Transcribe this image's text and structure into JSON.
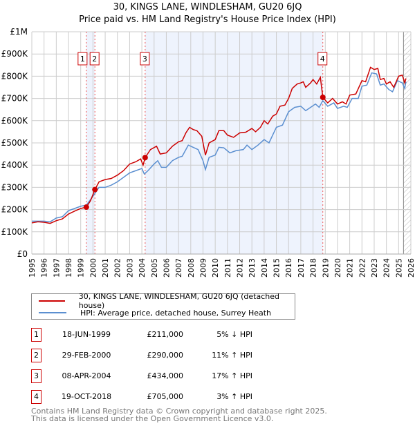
{
  "chart_data": {
    "type": "line",
    "title": "30, KINGS LANE, WINDLESHAM, GU20 6JQ",
    "subtitle": "Price paid vs. HM Land Registry's House Price Index (HPI)",
    "xlim": [
      1995,
      2026
    ],
    "ylim": [
      0,
      1000000
    ],
    "yticks": [
      {
        "v": 0,
        "l": "£0"
      },
      {
        "v": 100000,
        "l": "£100K"
      },
      {
        "v": 200000,
        "l": "£200K"
      },
      {
        "v": 300000,
        "l": "£300K"
      },
      {
        "v": 400000,
        "l": "£400K"
      },
      {
        "v": 500000,
        "l": "£500K"
      },
      {
        "v": 600000,
        "l": "£600K"
      },
      {
        "v": 700000,
        "l": "£700K"
      },
      {
        "v": 800000,
        "l": "£800K"
      },
      {
        "v": 900000,
        "l": "£900K"
      },
      {
        "v": 1000000,
        "l": "£1M"
      }
    ],
    "xticks": [
      "1995",
      "1996",
      "1997",
      "1998",
      "1999",
      "2000",
      "2001",
      "2002",
      "2003",
      "2004",
      "2005",
      "2006",
      "2007",
      "2008",
      "2009",
      "2010",
      "2011",
      "2012",
      "2013",
      "2014",
      "2015",
      "2016",
      "2017",
      "2018",
      "2019",
      "2020",
      "2021",
      "2022",
      "2023",
      "2024",
      "2025",
      "2026"
    ],
    "grid": true,
    "shaded_periods": [
      [
        1999.46,
        2000.16
      ],
      [
        2004.27,
        2018.8
      ]
    ],
    "forecast_hatch_from": 2025.4,
    "colors": {
      "price": "#cc0000",
      "hpi": "#5b8fd0",
      "shade": "#eef3fd"
    },
    "series": [
      {
        "name": "30, KINGS LANE, WINDLESHAM, GU20 6JQ (detached house)",
        "points": [
          [
            1995,
            140
          ],
          [
            1995.5,
            145
          ],
          [
            1996,
            143
          ],
          [
            1996.5,
            138
          ],
          [
            1997,
            150
          ],
          [
            1997.5,
            158
          ],
          [
            1998,
            180
          ],
          [
            1998.5,
            193
          ],
          [
            1999,
            205
          ],
          [
            1999.46,
            211
          ],
          [
            1999.8,
            240
          ],
          [
            2000.16,
            290
          ],
          [
            2000.5,
            325
          ],
          [
            2001,
            335
          ],
          [
            2001.5,
            340
          ],
          [
            2002,
            355
          ],
          [
            2002.5,
            375
          ],
          [
            2003,
            405
          ],
          [
            2003.5,
            415
          ],
          [
            2003.9,
            428
          ],
          [
            2004.1,
            400
          ],
          [
            2004.27,
            434
          ],
          [
            2004.7,
            470
          ],
          [
            2005.2,
            485
          ],
          [
            2005.5,
            450
          ],
          [
            2006,
            455
          ],
          [
            2006.5,
            485
          ],
          [
            2007,
            505
          ],
          [
            2007.3,
            510
          ],
          [
            2007.6,
            545
          ],
          [
            2007.9,
            570
          ],
          [
            2008.2,
            560
          ],
          [
            2008.5,
            555
          ],
          [
            2008.9,
            530
          ],
          [
            2009.2,
            445
          ],
          [
            2009.5,
            500
          ],
          [
            2010,
            515
          ],
          [
            2010.3,
            555
          ],
          [
            2010.7,
            555
          ],
          [
            2011,
            535
          ],
          [
            2011.5,
            525
          ],
          [
            2012,
            545
          ],
          [
            2012.5,
            548
          ],
          [
            2013,
            565
          ],
          [
            2013.3,
            550
          ],
          [
            2013.7,
            570
          ],
          [
            2014,
            600
          ],
          [
            2014.3,
            585
          ],
          [
            2014.7,
            620
          ],
          [
            2015,
            630
          ],
          [
            2015.3,
            665
          ],
          [
            2015.7,
            670
          ],
          [
            2016,
            700
          ],
          [
            2016.3,
            745
          ],
          [
            2016.7,
            765
          ],
          [
            2017,
            770
          ],
          [
            2017.2,
            775
          ],
          [
            2017.4,
            750
          ],
          [
            2017.8,
            770
          ],
          [
            2018,
            785
          ],
          [
            2018.3,
            765
          ],
          [
            2018.6,
            795
          ],
          [
            2018.8,
            705
          ],
          [
            2019.2,
            680
          ],
          [
            2019.6,
            700
          ],
          [
            2020,
            675
          ],
          [
            2020.4,
            685
          ],
          [
            2020.7,
            675
          ],
          [
            2021,
            715
          ],
          [
            2021.5,
            720
          ],
          [
            2022,
            780
          ],
          [
            2022.3,
            775
          ],
          [
            2022.7,
            840
          ],
          [
            2023,
            830
          ],
          [
            2023.3,
            835
          ],
          [
            2023.5,
            785
          ],
          [
            2023.8,
            790
          ],
          [
            2024,
            765
          ],
          [
            2024.3,
            775
          ],
          [
            2024.6,
            750
          ],
          [
            2025,
            800
          ],
          [
            2025.3,
            805
          ],
          [
            2025.5,
            770
          ],
          [
            2025.6,
            790
          ]
        ]
      },
      {
        "name": "HPI: Average price, detached house, Surrey Heath",
        "points": [
          [
            1995,
            148
          ],
          [
            1996,
            148
          ],
          [
            1996.5,
            145
          ],
          [
            1997,
            162
          ],
          [
            1997.5,
            168
          ],
          [
            1998,
            195
          ],
          [
            1998.5,
            205
          ],
          [
            1999,
            215
          ],
          [
            1999.46,
            220
          ],
          [
            2000,
            260
          ],
          [
            2000.5,
            300
          ],
          [
            2001,
            300
          ],
          [
            2001.5,
            310
          ],
          [
            2002,
            325
          ],
          [
            2002.5,
            345
          ],
          [
            2003,
            365
          ],
          [
            2003.5,
            375
          ],
          [
            2004,
            385
          ],
          [
            2004.2,
            360
          ],
          [
            2004.5,
            375
          ],
          [
            2005,
            405
          ],
          [
            2005.3,
            420
          ],
          [
            2005.6,
            390
          ],
          [
            2006,
            390
          ],
          [
            2006.5,
            420
          ],
          [
            2007,
            435
          ],
          [
            2007.3,
            440
          ],
          [
            2007.8,
            490
          ],
          [
            2008.2,
            480
          ],
          [
            2008.6,
            470
          ],
          [
            2009,
            420
          ],
          [
            2009.2,
            380
          ],
          [
            2009.5,
            435
          ],
          [
            2010,
            445
          ],
          [
            2010.3,
            480
          ],
          [
            2010.7,
            478
          ],
          [
            2011.2,
            455
          ],
          [
            2011.7,
            465
          ],
          [
            2012.3,
            470
          ],
          [
            2012.6,
            490
          ],
          [
            2013,
            470
          ],
          [
            2013.5,
            490
          ],
          [
            2014,
            515
          ],
          [
            2014.4,
            500
          ],
          [
            2014.7,
            535
          ],
          [
            2015,
            570
          ],
          [
            2015.5,
            580
          ],
          [
            2016,
            640
          ],
          [
            2016.5,
            660
          ],
          [
            2017,
            665
          ],
          [
            2017.4,
            645
          ],
          [
            2017.8,
            660
          ],
          [
            2018.2,
            675
          ],
          [
            2018.5,
            660
          ],
          [
            2018.8,
            690
          ],
          [
            2019.2,
            665
          ],
          [
            2019.7,
            680
          ],
          [
            2020,
            655
          ],
          [
            2020.5,
            665
          ],
          [
            2020.8,
            660
          ],
          [
            2021.2,
            700
          ],
          [
            2021.7,
            700
          ],
          [
            2022,
            755
          ],
          [
            2022.4,
            760
          ],
          [
            2022.8,
            815
          ],
          [
            2023.2,
            810
          ],
          [
            2023.5,
            760
          ],
          [
            2023.8,
            765
          ],
          [
            2024.2,
            740
          ],
          [
            2024.5,
            730
          ],
          [
            2024.9,
            780
          ],
          [
            2025.3,
            770
          ],
          [
            2025.5,
            745
          ],
          [
            2025.6,
            775
          ]
        ]
      }
    ],
    "y_unit": "thousands GBP",
    "sales": [
      {
        "label": "1",
        "year": 1999.46,
        "value": 211
      },
      {
        "label": "2",
        "year": 2000.16,
        "value": 290
      },
      {
        "label": "3",
        "year": 2004.27,
        "value": 434
      },
      {
        "label": "4",
        "year": 2018.8,
        "value": 705
      }
    ]
  },
  "legend": {
    "price": "30, KINGS LANE, WINDLESHAM, GU20 6JQ (detached house)",
    "hpi": "HPI: Average price, detached house, Surrey Heath"
  },
  "transactions": [
    {
      "num": "1",
      "date": "18-JUN-1999",
      "price": "£211,000",
      "hpi": "5% ↓ HPI"
    },
    {
      "num": "2",
      "date": "29-FEB-2000",
      "price": "£290,000",
      "hpi": "11% ↑ HPI"
    },
    {
      "num": "3",
      "date": "08-APR-2004",
      "price": "£434,000",
      "hpi": "17% ↑ HPI"
    },
    {
      "num": "4",
      "date": "19-OCT-2018",
      "price": "£705,000",
      "hpi": "3% ↑ HPI"
    }
  ],
  "footer": {
    "line1": "Contains HM Land Registry data © Crown copyright and database right 2025.",
    "line2": "This data is licensed under the Open Government Licence v3.0."
  }
}
